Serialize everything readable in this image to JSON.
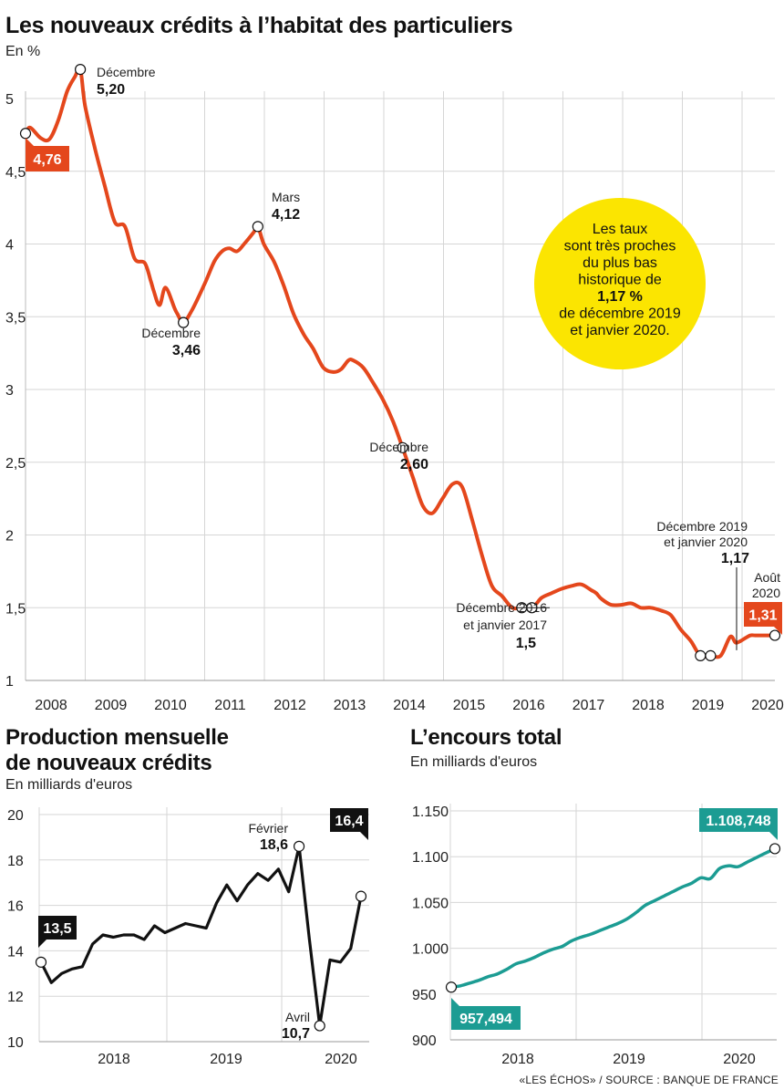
{
  "chart_data": [
    {
      "type": "line",
      "title": "Les nouveaux crédits à l’habitat des particuliers",
      "ylabel": "En %",
      "ylim": [
        1,
        5.2
      ],
      "yticks": [
        "1",
        "1,5",
        "2",
        "2,5",
        "3",
        "3,5",
        "4",
        "4,5",
        "5"
      ],
      "x_tick_labels": [
        "2008",
        "2009",
        "2010",
        "2011",
        "2012",
        "2013",
        "2014",
        "2015",
        "2016",
        "2017",
        "2018",
        "2019",
        "2020"
      ],
      "color": "#e4471c",
      "series": [
        {
          "x": [
            2008.0,
            2008.08,
            2008.25,
            2008.4,
            2008.55,
            2008.7,
            2008.83,
            2008.92,
            2009.0,
            2009.17,
            2009.33,
            2009.5,
            2009.67,
            2009.83,
            2010.0,
            2010.1,
            2010.15,
            2010.25,
            2010.35,
            2010.5,
            2010.55,
            2010.65,
            2010.8,
            2011.0,
            2011.17,
            2011.3,
            2011.42,
            2011.55,
            2011.67,
            2011.83,
            2011.9,
            2012.0,
            2012.17,
            2012.33,
            2012.5,
            2012.67,
            2012.83,
            2013.0,
            2013.17,
            2013.3,
            2013.42,
            2013.5,
            2013.67,
            2013.83,
            2014.0,
            2014.17,
            2014.33,
            2014.5,
            2014.67,
            2014.83,
            2015.0,
            2015.17,
            2015.33,
            2015.5,
            2015.67,
            2015.83,
            2016.0,
            2016.17,
            2016.33,
            2016.5,
            2016.58,
            2016.67,
            2016.83,
            2017.0,
            2017.17,
            2017.33,
            2017.5,
            2017.58,
            2017.67,
            2017.83,
            2018.0,
            2018.17,
            2018.33,
            2018.5,
            2018.67,
            2018.83,
            2019.0,
            2019.17,
            2019.33,
            2019.5,
            2019.67,
            2019.83,
            2019.92,
            2020.0,
            2020.08,
            2020.17,
            2020.25,
            2020.42,
            2020.58
          ],
          "values": [
            4.76,
            4.8,
            4.73,
            4.72,
            4.85,
            5.05,
            5.15,
            5.2,
            4.95,
            4.65,
            4.4,
            4.15,
            4.12,
            3.9,
            3.87,
            3.75,
            3.68,
            3.58,
            3.7,
            3.56,
            3.52,
            3.46,
            3.55,
            3.72,
            3.88,
            3.95,
            3.97,
            3.95,
            4.0,
            4.08,
            4.12,
            4.0,
            3.88,
            3.72,
            3.52,
            3.38,
            3.28,
            3.15,
            3.12,
            3.14,
            3.2,
            3.2,
            3.15,
            3.05,
            2.93,
            2.78,
            2.6,
            2.4,
            2.2,
            2.15,
            2.25,
            2.35,
            2.33,
            2.1,
            1.85,
            1.65,
            1.58,
            1.5,
            1.5,
            1.5,
            1.53,
            1.57,
            1.6,
            1.63,
            1.65,
            1.66,
            1.62,
            1.6,
            1.56,
            1.52,
            1.52,
            1.53,
            1.5,
            1.5,
            1.48,
            1.45,
            1.35,
            1.27,
            1.17,
            1.17,
            1.17,
            1.3,
            1.26,
            1.27,
            1.29,
            1.31,
            1.31,
            1.31,
            1.31
          ]
        }
      ],
      "annotations": [
        {
          "label": "Décembre",
          "value": "5,20"
        },
        {
          "label": "Décembre",
          "value": "3,46"
        },
        {
          "label": "Mars",
          "value": "4,12"
        },
        {
          "label": "Décembre",
          "value": "2,60"
        },
        {
          "label": [
            "Décembre 2016",
            "et janvier 2017"
          ],
          "value": "1,5"
        },
        {
          "label": [
            "Décembre 2019",
            "et janvier 2020"
          ],
          "value": "1,17"
        },
        {
          "label": [
            "Août",
            "2020"
          ],
          "value": "1,31"
        }
      ],
      "start_tag": "4,76",
      "end_tag": "1,31",
      "bubble": {
        "lines": [
          "Les taux",
          "sont très proches",
          "du plus bas",
          "historique de"
        ],
        "bold": "1,17 %",
        "lines_after": [
          "de décembre 2019",
          "et janvier 2020."
        ],
        "color": "#fbe501"
      }
    },
    {
      "type": "line",
      "title": "Production mensuelle de nouveaux crédits",
      "title_lines": [
        "Production mensuelle",
        "de nouveaux crédits"
      ],
      "ylabel": "En milliards d'euros",
      "ylim": [
        10,
        20
      ],
      "yticks": [
        "20",
        "18",
        "16",
        "14",
        "12",
        "10"
      ],
      "x_tick_labels": [
        "2018",
        "2019",
        "2020"
      ],
      "color": "#111111",
      "series": [
        {
          "values": [
            13.5,
            12.6,
            13.0,
            13.2,
            13.3,
            14.3,
            14.7,
            14.6,
            14.7,
            14.7,
            14.5,
            15.1,
            14.8,
            15.0,
            15.2,
            15.1,
            15.0,
            16.1,
            16.9,
            16.2,
            16.9,
            17.4,
            17.1,
            17.6,
            16.6,
            18.6,
            14.5,
            10.7,
            13.6,
            13.5,
            14.1,
            16.4
          ]
        }
      ],
      "annotations": [
        {
          "label": "Février",
          "value": "18,6"
        },
        {
          "label": "Avril",
          "value": "10,7"
        }
      ],
      "start_tag": "13,5",
      "end_tag": "16,4"
    },
    {
      "type": "line",
      "title": "L’encours total",
      "ylabel": "En milliards d'euros",
      "ylim": [
        900,
        1150
      ],
      "yticks": [
        "1.150",
        "1.100",
        "1.050",
        "1.000",
        "950",
        "900"
      ],
      "x_tick_labels": [
        "2018",
        "2019",
        "2020"
      ],
      "color": "#1c9c93",
      "series": [
        {
          "values": [
            957.494,
            959,
            962,
            965,
            969,
            972,
            977,
            983,
            986,
            990,
            995,
            999,
            1002,
            1008,
            1012,
            1015,
            1019,
            1023,
            1027,
            1032,
            1039,
            1047,
            1052,
            1057,
            1062,
            1067,
            1071,
            1077,
            1076,
            1087,
            1090,
            1089,
            1094,
            1099,
            1104,
            1108.748
          ]
        }
      ],
      "start_tag": "957,494",
      "end_tag": "1.108,748"
    }
  ],
  "footer": "«LES ÉCHOS» / SOURCE : BANQUE DE FRANCE"
}
